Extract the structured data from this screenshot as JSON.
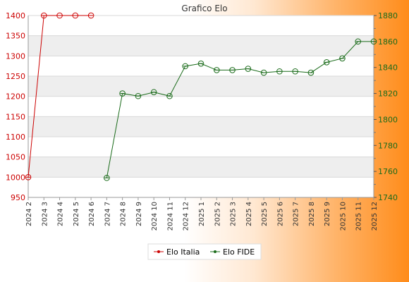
{
  "chart_data": {
    "type": "line",
    "title": "Grafico Elo",
    "categories": [
      "2024 2",
      "2024 3",
      "2024 4",
      "2024 5",
      "2024 6",
      "2024 7",
      "2024 8",
      "2024 9",
      "2024 10",
      "2024 11",
      "2024 12",
      "2025 1",
      "2025 2",
      "2025 3",
      "2025 4",
      "2025 5",
      "2025 6",
      "2025 7",
      "2025 8",
      "2025 9",
      "2025 10",
      "2025 11",
      "2025 12"
    ],
    "y_left": {
      "min": 950,
      "max": 1400,
      "ticks": [
        950,
        1000,
        1050,
        1100,
        1150,
        1200,
        1250,
        1300,
        1350,
        1400
      ]
    },
    "y_right": {
      "min": 1740,
      "max": 1880,
      "ticks": [
        1740,
        1760,
        1780,
        1800,
        1820,
        1840,
        1860,
        1880
      ]
    },
    "grid": true,
    "legend_position": "bottom",
    "series": [
      {
        "name": "Elo Italia",
        "axis": "left",
        "color": "#cc0000",
        "values": [
          1000,
          1400,
          1400,
          1400,
          1400,
          null,
          null,
          null,
          null,
          null,
          null,
          null,
          null,
          null,
          null,
          null,
          null,
          null,
          null,
          null,
          null,
          null,
          null
        ]
      },
      {
        "name": "Elo FIDE",
        "axis": "right",
        "color": "#1a6b1a",
        "values": [
          null,
          null,
          null,
          null,
          null,
          1755,
          1820,
          1818,
          1821,
          1818,
          1841,
          1843,
          1838,
          1838,
          1839,
          1836,
          1837,
          1837,
          1836,
          1844,
          1847,
          1860,
          1860
        ]
      }
    ]
  }
}
